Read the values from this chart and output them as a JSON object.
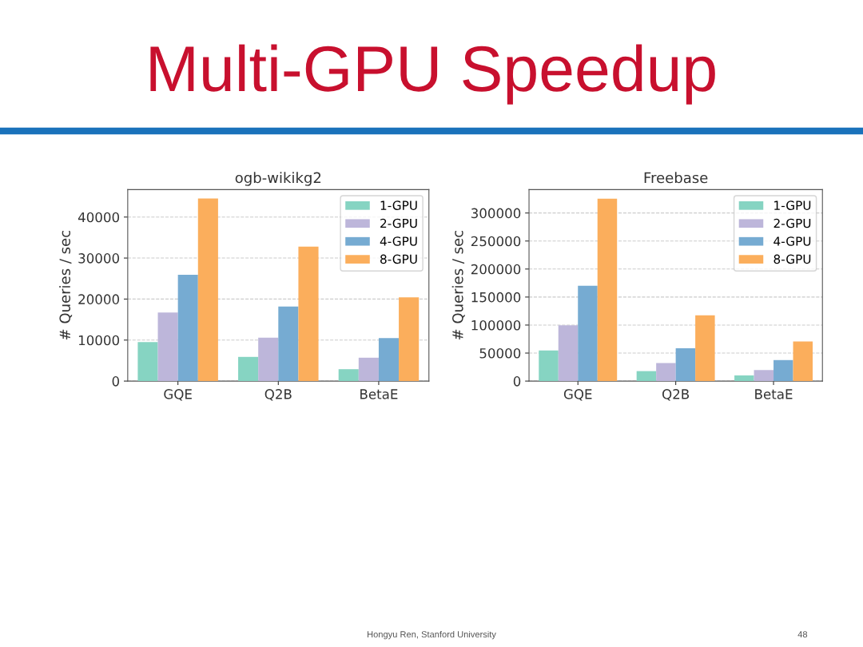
{
  "chart_data": [
    {
      "type": "bar",
      "title": "ogb-wikikg2",
      "ylabel": "# Queries / sec",
      "categories": [
        "GQE",
        "Q2B",
        "BetaE"
      ],
      "series": [
        {
          "name": "1-GPU",
          "color": "#86d4c2",
          "values": [
            9500,
            5900,
            2900
          ]
        },
        {
          "name": "2-GPU",
          "color": "#bdb6da",
          "values": [
            16700,
            10600,
            5700
          ]
        },
        {
          "name": "4-GPU",
          "color": "#76abd2",
          "values": [
            25900,
            18200,
            10500
          ]
        },
        {
          "name": "8-GPU",
          "color": "#fbae5c",
          "values": [
            44500,
            32800,
            20400
          ]
        }
      ],
      "ylim": [
        0,
        46700
      ],
      "yticks": [
        0,
        10000,
        20000,
        30000,
        40000
      ],
      "grid": "y",
      "legend": "top right",
      "annotations": [
        "Multi-GPU Speedup",
        "Hongyu Ren, Stanford University",
        "48"
      ]
    },
    {
      "type": "bar",
      "title": "Freebase",
      "ylabel": "# Queries / sec",
      "categories": [
        "GQE",
        "Q2B",
        "BetaE"
      ],
      "series": [
        {
          "name": "1-GPU",
          "color": "#86d4c2",
          "values": [
            54800,
            17800,
            10100
          ]
        },
        {
          "name": "2-GPU",
          "color": "#bdb6da",
          "values": [
            99500,
            32200,
            19700
          ]
        },
        {
          "name": "4-GPU",
          "color": "#76abd2",
          "values": [
            170200,
            58700,
            37500
          ]
        },
        {
          "name": "8-GPU",
          "color": "#fbae5c",
          "values": [
            325500,
            117300,
            70700
          ]
        }
      ],
      "ylim": [
        0,
        341800
      ],
      "yticks": [
        0,
        50000,
        100000,
        150000,
        200000,
        250000,
        300000
      ],
      "grid": "y",
      "legend": "top right"
    }
  ]
}
